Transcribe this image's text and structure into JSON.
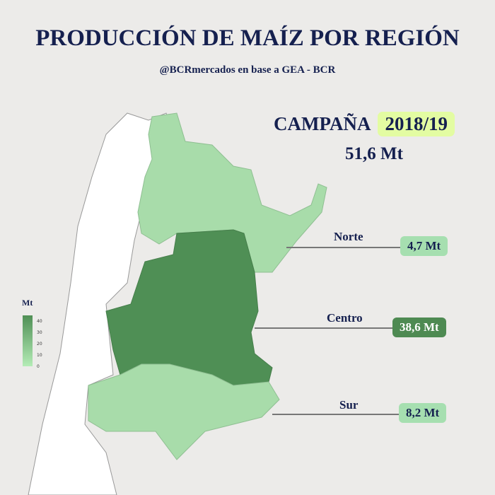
{
  "title": "PRODUCCIÓN DE MAÍZ POR REGIÓN",
  "subtitle": "@BCRmercados en base a GEA - BCR",
  "campaign": {
    "label": "CAMPAÑA",
    "year": "2018/19",
    "total": "51,6 Mt"
  },
  "regions": [
    {
      "name": "Norte",
      "value": "4,7 Mt",
      "color": "#a6dfb0"
    },
    {
      "name": "Centro",
      "value": "38,6 Mt",
      "color": "#4e8a52"
    },
    {
      "name": "Sur",
      "value": "8,2 Mt",
      "color": "#a6dfb0"
    }
  ],
  "legend": {
    "title": "Mt",
    "ticks": [
      "40",
      "30",
      "20",
      "10",
      "0"
    ],
    "color_high": "#4f8f55",
    "color_low": "#b4ecb6"
  }
}
